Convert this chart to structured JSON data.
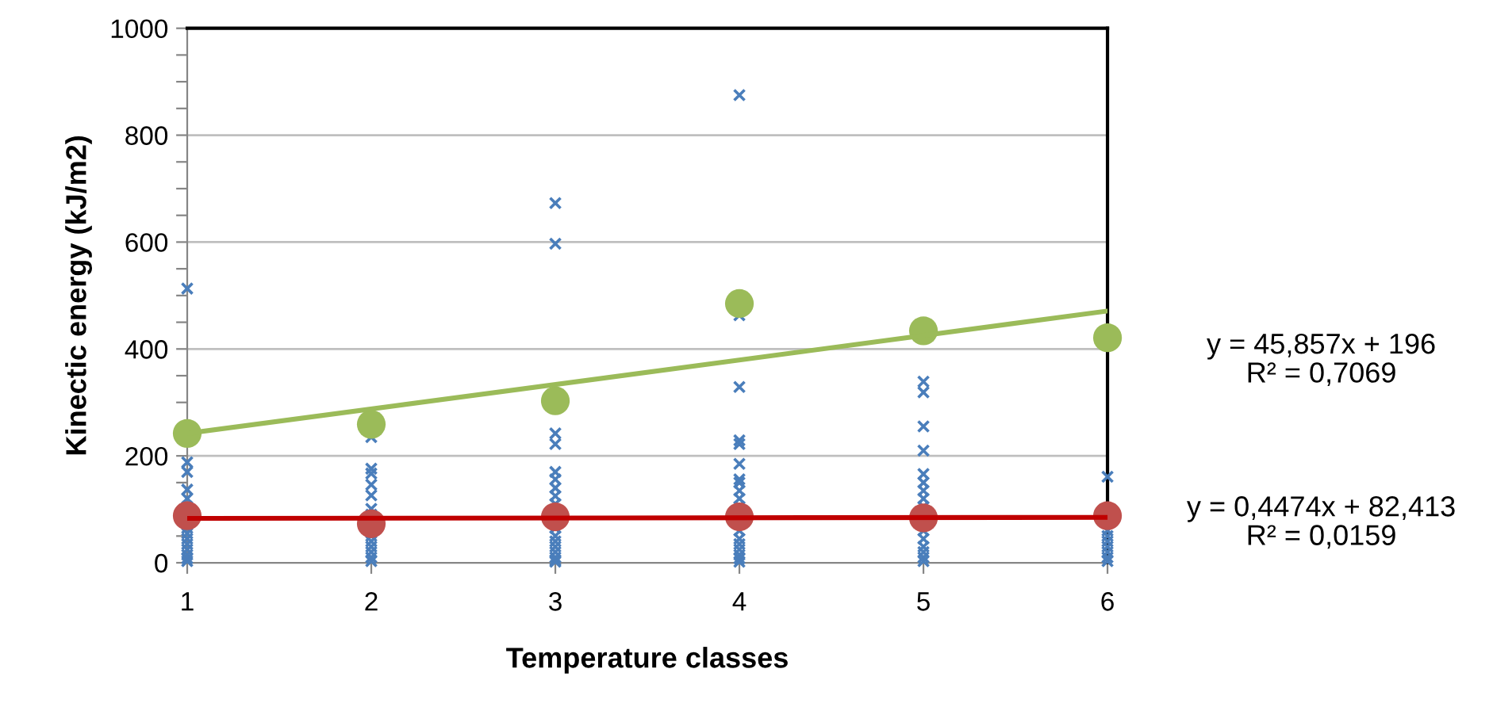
{
  "chart_data": {
    "type": "scatter",
    "xlabel": "Temperature classes",
    "ylabel": "Kinectic energy (kJ/m2)",
    "xlim": [
      1,
      6
    ],
    "xticks": [
      1,
      2,
      3,
      4,
      5,
      6
    ],
    "ylim": [
      0,
      1000
    ],
    "yticks": [
      0,
      {
        "value": 50,
        "label": null
      },
      {
        "value": 100,
        "label": null
      },
      {
        "value": 150,
        "label": null
      },
      200,
      {
        "value": 250,
        "label": null
      },
      {
        "value": 300,
        "label": null
      },
      {
        "value": 350,
        "label": null
      },
      400,
      {
        "value": 450,
        "label": null
      },
      {
        "value": 500,
        "label": null
      },
      {
        "value": 550,
        "label": null
      },
      600,
      {
        "value": 650,
        "label": null
      },
      {
        "value": 700,
        "label": null
      },
      {
        "value": 750,
        "label": null
      },
      800,
      {
        "value": 850,
        "label": null
      },
      {
        "value": 900,
        "label": null
      },
      {
        "value": 950,
        "label": null
      },
      1000
    ],
    "grid": "y",
    "annotations": [
      "y = 45,857x + 196\nR² = 0,7069",
      "y = 0,4474x + 82,413\nR² = 0,0159"
    ],
    "series": [
      {
        "marker": "cross",
        "color": "#4a7ebb",
        "x": [
          1,
          1,
          1,
          1,
          1,
          1,
          1,
          1,
          1,
          1,
          1,
          1,
          1,
          1,
          2,
          2,
          2,
          2,
          2,
          2,
          2,
          2,
          2,
          2,
          2,
          2,
          2,
          3,
          3,
          3,
          3,
          3,
          3,
          3,
          3,
          3,
          3,
          3,
          3,
          3,
          3,
          3,
          3,
          3,
          4,
          4,
          4,
          4,
          4,
          4,
          4,
          4,
          4,
          4,
          4,
          4,
          4,
          4,
          4,
          4,
          4,
          4,
          5,
          5,
          5,
          5,
          5,
          5,
          5,
          5,
          5,
          5,
          5,
          5,
          5,
          5,
          5,
          6,
          6,
          6,
          6,
          6,
          6,
          6,
          6
        ],
        "values": [
          513,
          188,
          170,
          137,
          120,
          105,
          65,
          55,
          45,
          35,
          25,
          15,
          8,
          3,
          235,
          176,
          167,
          146,
          126,
          101,
          90,
          50,
          40,
          30,
          20,
          10,
          3,
          673,
          597,
          242,
          222,
          170,
          156,
          140,
          125,
          110,
          65,
          50,
          40,
          30,
          20,
          10,
          5,
          2,
          875,
          463,
          329,
          229,
          222,
          185,
          156,
          150,
          135,
          120,
          105,
          60,
          45,
          35,
          25,
          15,
          8,
          2,
          339,
          319,
          255,
          210,
          166,
          150,
          135,
          120,
          105,
          60,
          45,
          30,
          20,
          10,
          3,
          161,
          60,
          50,
          40,
          30,
          20,
          10,
          3
        ]
      },
      {
        "marker": "circle",
        "color": "#9bbb59",
        "x": [
          1,
          2,
          3,
          4,
          5,
          6
        ],
        "values": [
          242,
          259,
          303,
          485,
          434,
          421
        ]
      },
      {
        "marker": "circle",
        "color": "#c0504d",
        "x": [
          1,
          2,
          3,
          4,
          5,
          6
        ],
        "values": [
          88,
          73,
          86,
          86,
          84,
          88
        ]
      },
      {
        "type": "line",
        "marker": "none",
        "line_style": "solid",
        "color": "#9bbb59",
        "x": [
          1,
          6
        ],
        "values": [
          242,
          471
        ]
      },
      {
        "type": "line",
        "marker": "none",
        "line_style": "solid",
        "color": "#c00000",
        "x": [
          1,
          6
        ],
        "values": [
          83,
          85
        ]
      }
    ]
  }
}
